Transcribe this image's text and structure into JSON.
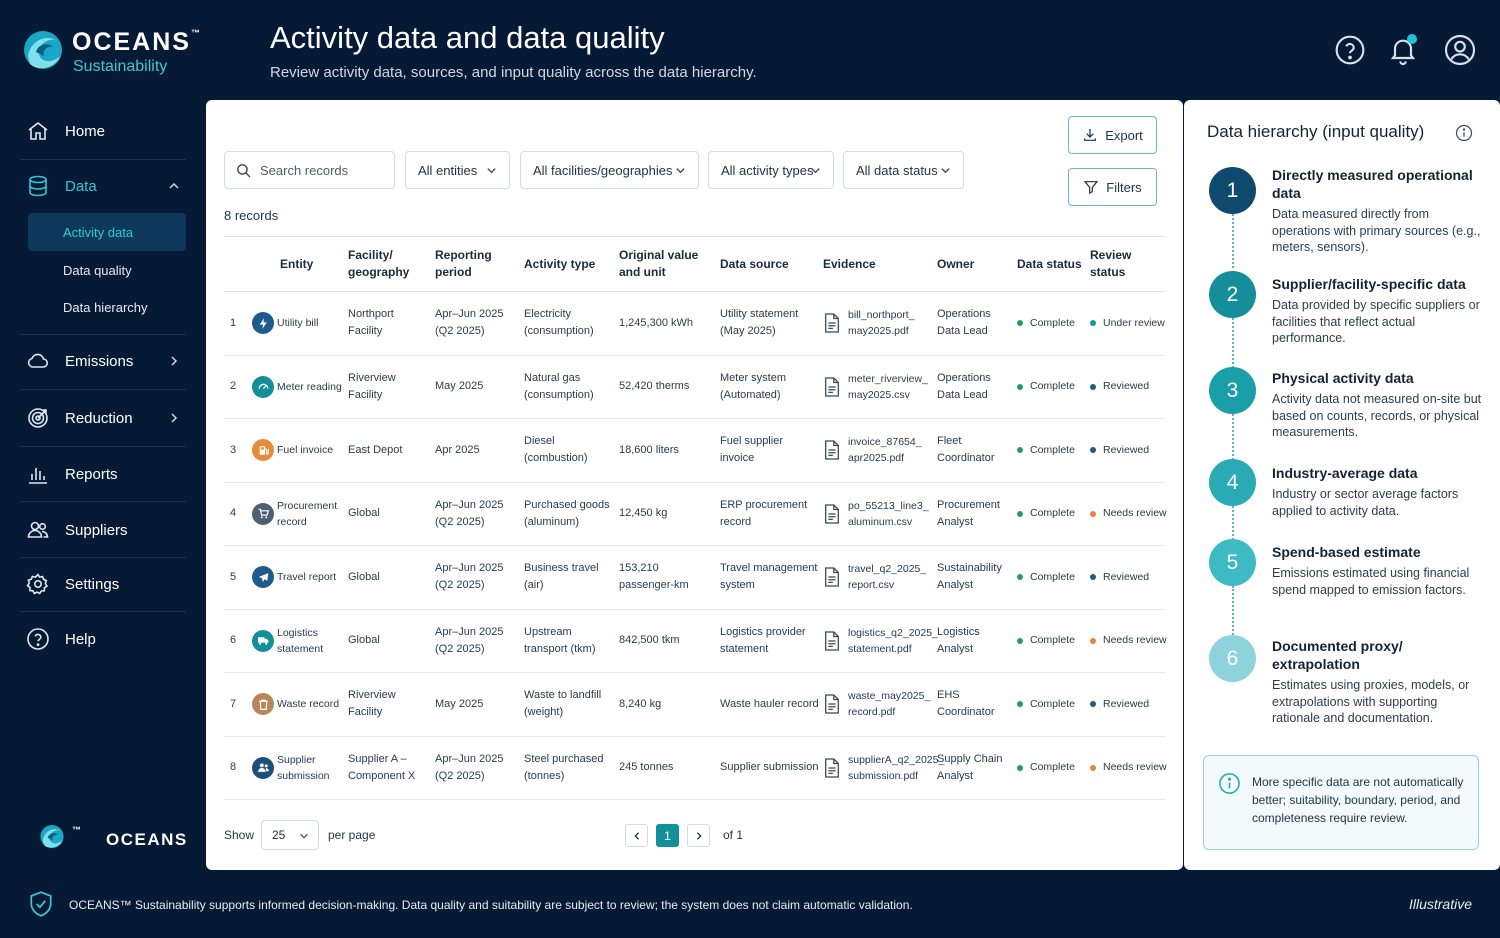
{
  "brand": {
    "name": "OCEANS",
    "tm": "™",
    "tagline": "Sustainability"
  },
  "header": {
    "title": "Activity data and data quality",
    "subtitle": "Review activity data, sources, and input quality across the data hierarchy."
  },
  "icons": {
    "help": "help-circle-icon",
    "notifications": "bell-icon",
    "account": "user-circle-icon"
  },
  "sidebar": {
    "items": [
      {
        "label": "Home",
        "icon": "home-icon"
      },
      {
        "label": "Data",
        "icon": "database-icon",
        "expanded": true
      },
      {
        "label": "Emissions",
        "icon": "cloud-icon"
      },
      {
        "label": "Reduction",
        "icon": "target-icon"
      },
      {
        "label": "Reports",
        "icon": "bar-chart-icon"
      },
      {
        "label": "Suppliers",
        "icon": "users-icon"
      },
      {
        "label": "Settings",
        "icon": "gear-icon"
      },
      {
        "label": "Help",
        "icon": "help-circle-icon"
      }
    ],
    "data_subitems": [
      {
        "label": "Activity data",
        "active": true
      },
      {
        "label": "Data quality"
      },
      {
        "label": "Data hierarchy"
      }
    ],
    "footer_brand": "OCEANS"
  },
  "toolbar": {
    "search_placeholder": "Search records",
    "filters": [
      "All entities",
      "All facilities/geographies",
      "All activity types",
      "All data status"
    ],
    "export_label": "Export",
    "filters_label": "Filters"
  },
  "records_count": "8 records",
  "table": {
    "columns": [
      "",
      "Entity",
      "Facility/ geography",
      "Reporting period",
      "Activity type",
      "Original value and unit",
      "Data source",
      "Evidence",
      "Owner",
      "Data status",
      "Review status"
    ],
    "rows": [
      {
        "num": "1",
        "entity": "Utility bill",
        "icon": "lightning-icon",
        "icon_color": "#1e5a8c",
        "facility": "Northport Facility",
        "period": "Apr–Jun 2025 (Q2 2025)",
        "activity": "Electricity (consumption)",
        "value": "1,245,300 kWh",
        "source": "Utility statement (May 2025)",
        "evidence": "bill_northport_ may2025.pdf",
        "owner": "Operations Data Lead",
        "data_status": "Complete",
        "review_status": "Under review",
        "review_color": "#16949f"
      },
      {
        "num": "2",
        "entity": "Meter reading",
        "icon": "gauge-icon",
        "icon_color": "#148f99",
        "facility": "Riverview Facility",
        "period": "May 2025",
        "activity": "Natural gas (consumption)",
        "value": "52,420 therms",
        "source": "Meter system (Automated)",
        "evidence": "meter_riverview_ may2025.csv",
        "owner": "Operations Data Lead",
        "data_status": "Complete",
        "review_status": "Reviewed",
        "review_color": "#1e5a8c"
      },
      {
        "num": "3",
        "entity": "Fuel invoice",
        "icon": "fuel-icon",
        "icon_color": "#e58b3a",
        "facility": "East Depot",
        "period": "Apr 2025",
        "activity": "Diesel (combustion)",
        "value": "18,600 liters",
        "source": "Fuel supplier invoice",
        "evidence": "invoice_87654_ apr2025.pdf",
        "owner": "Fleet Coordinator",
        "data_status": "Complete",
        "review_status": "Reviewed",
        "review_color": "#1e5a8c"
      },
      {
        "num": "4",
        "entity": "Procurement record",
        "icon": "cart-icon",
        "icon_color": "#4f5f73",
        "facility": "Global",
        "period": "Apr–Jun 2025 (Q2 2025)",
        "activity": "Purchased goods (aluminum)",
        "value": "12,450 kg",
        "source": "ERP procurement record",
        "evidence": "po_55213_line3_ aluminum.csv",
        "owner": "Procurement Analyst",
        "data_status": "Complete",
        "review_status": "Needs review",
        "review_color": "#e8833a"
      },
      {
        "num": "5",
        "entity": "Travel report",
        "icon": "plane-icon",
        "icon_color": "#1e5a8c",
        "facility": "Global",
        "period": "Apr–Jun 2025 (Q2 2025)",
        "activity": "Business travel (air)",
        "value": "153,210 passenger-km",
        "source": "Travel management system",
        "evidence": "travel_q2_2025_ report.csv",
        "owner": "Sustainability Analyst",
        "data_status": "Complete",
        "review_status": "Reviewed",
        "review_color": "#1e5a8c"
      },
      {
        "num": "6",
        "entity": "Logistics statement",
        "icon": "truck-icon",
        "icon_color": "#148f99",
        "facility": "Global",
        "period": "Apr–Jun 2025 (Q2 2025)",
        "activity": "Upstream transport (tkm)",
        "value": "842,500 tkm",
        "source": "Logistics provider statement",
        "evidence": "logistics_q2_2025_ statement.pdf",
        "owner": "Logistics Analyst",
        "data_status": "Complete",
        "review_status": "Needs review",
        "review_color": "#e8833a"
      },
      {
        "num": "7",
        "entity": "Waste record",
        "icon": "trash-icon",
        "icon_color": "#b9865a",
        "facility": "Riverview Facility",
        "period": "May 2025",
        "activity": "Waste to landfill (weight)",
        "value": "8,240 kg",
        "source": "Waste hauler record",
        "evidence": "waste_may2025_ record.pdf",
        "owner": "EHS Coordinator",
        "data_status": "Complete",
        "review_status": "Reviewed",
        "review_color": "#1e5a8c"
      },
      {
        "num": "8",
        "entity": "Supplier submission",
        "icon": "people-icon",
        "icon_color": "#1e4f78",
        "facility": "Supplier A – Component X",
        "period": "Apr–Jun 2025 (Q2 2025)",
        "activity": "Steel purchased (tonnes)",
        "value": "245 tonnes",
        "source": "Supplier submission",
        "evidence": "supplierA_q2_2025_ submission.pdf",
        "owner": "Supply Chain Analyst",
        "data_status": "Complete",
        "review_status": "Needs review",
        "review_color": "#e8833a"
      }
    ],
    "complete_color": "#2f9a54"
  },
  "pagination": {
    "show_label": "Show",
    "per_page_value": "25",
    "per_page_label": "per page",
    "current_page": "1",
    "of_label": "of 1"
  },
  "hierarchy": {
    "title": "Data hierarchy (input quality)",
    "steps": [
      {
        "num": "1",
        "title": "Directly measured operational data",
        "desc": "Data measured directly from operations with primary sources (e.g., meters, sensors).",
        "color": "#0f4a6e"
      },
      {
        "num": "2",
        "title": "Supplier/facility-specific data",
        "desc": "Data provided by specific suppliers or facilities that reflect actual performance.",
        "color": "#148f99"
      },
      {
        "num": "3",
        "title": "Physical activity data",
        "desc": "Activity data not measured on-site but based on counts, records, or physical measurements.",
        "color": "#1a9ea8"
      },
      {
        "num": "4",
        "title": "Industry-average data",
        "desc": "Industry or sector average factors applied to activity data.",
        "color": "#2aaab5"
      },
      {
        "num": "5",
        "title": "Spend-based estimate",
        "desc": "Emissions estimated using financial spend mapped to emission factors.",
        "color": "#3dbac4"
      },
      {
        "num": "6",
        "title": "Documented proxy/ extrapolation",
        "desc": "Estimates using proxies, models, or extrapolations with supporting rationale and documentation.",
        "color": "#8ed3db"
      }
    ],
    "note": "More specific data are not automatically better; suitability, boundary, period, and completeness require review."
  },
  "footer": {
    "text": "OCEANS™ Sustainability supports informed decision-making. Data quality and suitability are subject to review; the system does not claim automatic validation.",
    "badge": "Illustrative"
  }
}
